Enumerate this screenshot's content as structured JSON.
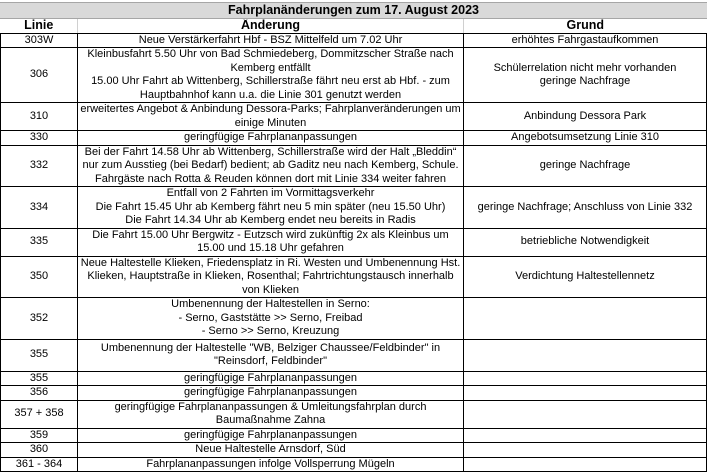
{
  "title": "Fahrplanänderungen zum 17. August 2023",
  "headers": {
    "linie": "Linie",
    "aenderung": "Änderung",
    "grund": "Grund"
  },
  "rows": [
    {
      "linie": "303W",
      "aenderung": "Neue Verstärkerfahrt Hbf - BSZ Mittelfeld um 7.02 Uhr",
      "grund": "erhöhtes Fahrgastaufkommen"
    },
    {
      "linie": "306",
      "aenderung": "Kleinbusfahrt 5.50 Uhr von Bad Schmiedeberg, Dommitzscher Straße nach Kemberg entfällt\n15.00 Uhr Fahrt ab Wittenberg, Schillerstraße fährt neu erst ab Hbf. - zum Hauptbahnhof kann u.a. die Linie 301 genutzt werden",
      "grund": "Schülerrelation nicht mehr vorhanden\ngeringe Nachfrage"
    },
    {
      "linie": "310",
      "aenderung": "erweitertes Angebot & Anbindung Dessora-Parks; Fahrplanveränderungen um einige Minuten",
      "grund": "Anbindung Dessora Park"
    },
    {
      "linie": "330",
      "aenderung": "geringfügige Fahrplananpassungen",
      "grund": "Angebotsumsetzung Linie 310"
    },
    {
      "linie": "332",
      "aenderung": "Bei der Fahrt 14.58 Uhr ab Wittenberg, Schillerstraße wird der Halt „Bleddin“ nur zum Ausstieg (bei Bedarf) bedient; ab Gaditz neu nach Kemberg, Schule. Fahrgäste nach Rotta & Reuden können dort mit Linie 334 weiter fahren",
      "grund": "geringe Nachfrage"
    },
    {
      "linie": "334",
      "aenderung": "Entfall von 2 Fahrten im Vormittagsverkehr\nDie Fahrt 15.45 Uhr ab Kemberg fährt neu 5 min später (neu 15.50 Uhr)\nDie Fahrt 14.34 Uhr ab Kemberg endet neu bereits in Radis",
      "grund": "geringe Nachfrage; Anschluss von Linie 332"
    },
    {
      "linie": "335",
      "aenderung": "Die Fahrt 15.00 Uhr Bergwitz - Eutzsch wird zukünftig 2x als Kleinbus um 15.00 und 15.18 Uhr gefahren",
      "grund": "betriebliche Notwendigkeit"
    },
    {
      "linie": "350",
      "aenderung": "Neue Haltestelle Klieken, Friedensplatz in Ri. Westen und Umbenennung Hst. Klieken, Hauptstraße in Klieken, Rosenthal; Fahrtrichtungstausch innerhalb von Klieken",
      "grund": "Verdichtung Haltestellennetz"
    },
    {
      "linie": "352",
      "aenderung": "Umbenennung der Haltestellen in Serno:\n- Serno, Gaststätte >> Serno, Freibad\n- Serno >> Serno, Kreuzung",
      "grund": ""
    },
    {
      "linie": "355",
      "aenderung": "Umbenennung der Haltestelle \"WB, Belziger Chaussee/Feldbinder\" in \"Reinsdorf, Feldbinder\"",
      "grund": ""
    },
    {
      "linie": "355",
      "aenderung": "geringfügige Fahrplananpassungen",
      "grund": ""
    },
    {
      "linie": "356",
      "aenderung": "geringfügige Fahrplananpassungen",
      "grund": ""
    },
    {
      "linie": "357 + 358",
      "aenderung": "geringfügige Fahrplananpassungen & Umleitungsfahrplan durch Baumaßnahme Zahna",
      "grund": ""
    },
    {
      "linie": "359",
      "aenderung": "geringfügige Fahrplananpassungen",
      "grund": ""
    },
    {
      "linie": "360",
      "aenderung": "Neue Haltestelle Arnsdorf, Süd",
      "grund": ""
    },
    {
      "linie": "361 - 364",
      "aenderung": "Fahrplananpassungen infolge Vollsperrung Mügeln",
      "grund": ""
    }
  ]
}
